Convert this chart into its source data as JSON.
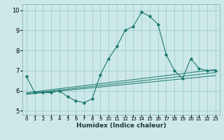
{
  "xlabel": "Humidex (Indice chaleur)",
  "ylabel": "",
  "xlim": [
    -0.5,
    23.5
  ],
  "ylim": [
    4.8,
    10.3
  ],
  "yticks": [
    5,
    6,
    7,
    8,
    9,
    10
  ],
  "xticks": [
    0,
    1,
    2,
    3,
    4,
    5,
    6,
    7,
    8,
    9,
    10,
    11,
    12,
    13,
    14,
    15,
    16,
    17,
    18,
    19,
    20,
    21,
    22,
    23
  ],
  "bg_color": "#cde8e8",
  "grid_color": "#9ecece",
  "line_color": "#1a7a6e",
  "series": {
    "main": {
      "x": [
        0,
        1,
        2,
        3,
        4,
        5,
        6,
        7,
        8,
        9,
        10,
        11,
        12,
        13,
        14,
        15,
        16,
        17,
        18,
        19,
        20,
        21,
        22,
        23
      ],
      "y": [
        6.7,
        5.9,
        5.9,
        5.9,
        6.0,
        5.7,
        5.5,
        5.4,
        5.6,
        6.8,
        7.6,
        8.2,
        9.0,
        9.2,
        9.9,
        9.7,
        9.3,
        7.8,
        7.0,
        6.6,
        7.6,
        7.1,
        7.0,
        7.0
      ]
    },
    "line1": {
      "x": [
        0,
        23
      ],
      "y": [
        5.9,
        7.05
      ]
    },
    "line2": {
      "x": [
        0,
        23
      ],
      "y": [
        5.85,
        6.9
      ]
    },
    "line3": {
      "x": [
        0,
        23
      ],
      "y": [
        5.82,
        6.75
      ]
    }
  },
  "xlabel_fontsize": 6.5,
  "xlabel_fontweight": "bold",
  "xlabel_color": "#1a3a3a",
  "tick_fontsize": 5,
  "ytick_fontsize": 6
}
